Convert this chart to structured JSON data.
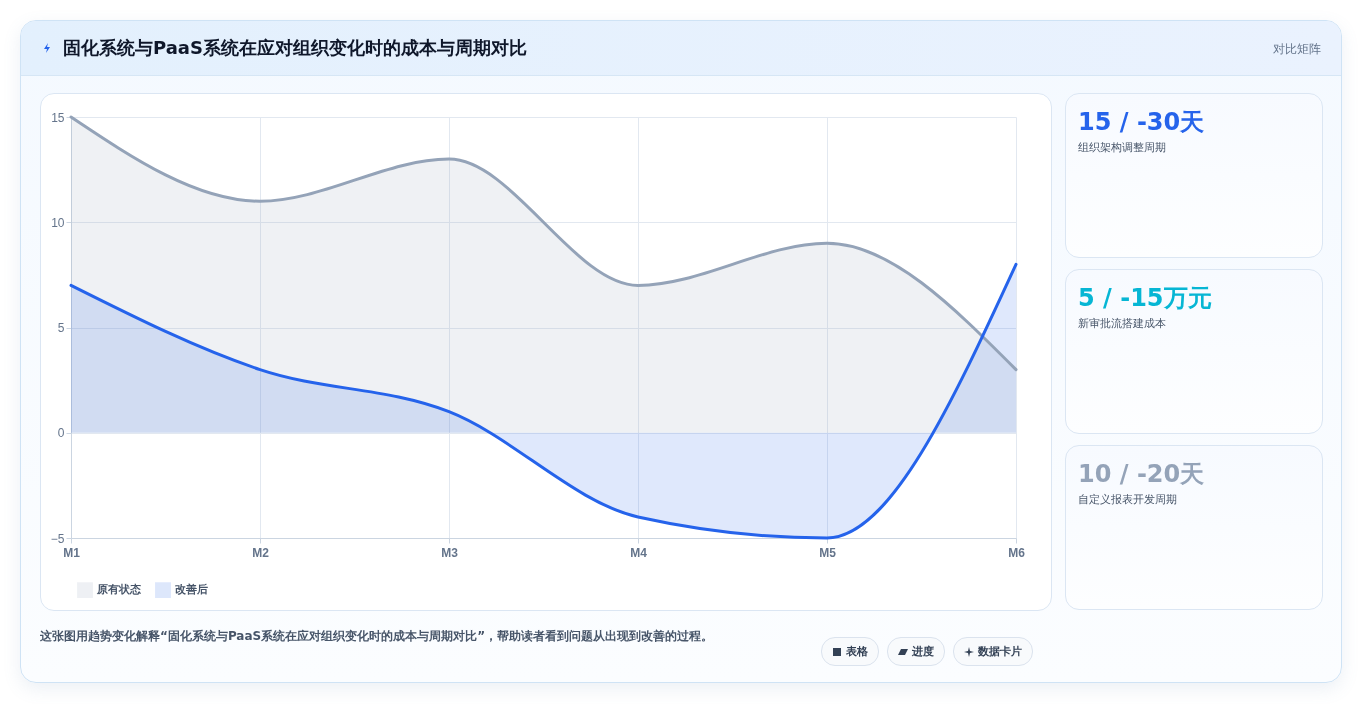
{
  "chart_data": [
    {
      "type": "area",
      "title": "固化系统与PaaS系统在应对组织变化时的成本与周期对比",
      "annotations": [
        "对比矩阵",
        "这张图用趋势变化解释“固化系统与PaaS系统在应对组织变化时的成本与周期对比”，帮助读者看到问题从出现到改善的过程。",
        "表格",
        "进度",
        "数据卡片"
      ],
      "categories": [
        "M1",
        "M2",
        "M3",
        "M4",
        "M5",
        "M6"
      ],
      "ylim": [
        -5,
        15
      ],
      "yticks": [
        -5,
        0,
        5,
        10,
        15
      ],
      "grid": true,
      "legend": "bottom",
      "series": [
        {
          "name": "原有状态",
          "color": "#94a3b8",
          "values": [
            15,
            11,
            13,
            7,
            9,
            3
          ]
        },
        {
          "name": "改善后",
          "color": "#2563eb",
          "values": [
            7,
            3,
            1,
            -4,
            -5,
            8
          ]
        }
      ]
    },
    {
      "type": "other",
      "title": "15 / -30天",
      "subtitle": "组织架构调整周期"
    },
    {
      "type": "other",
      "title": "5 / -15万元",
      "subtitle": "新审批流搭建成本"
    },
    {
      "type": "other",
      "title": "10 / -20天",
      "subtitle": "自定义报表开发周期"
    }
  ]
}
